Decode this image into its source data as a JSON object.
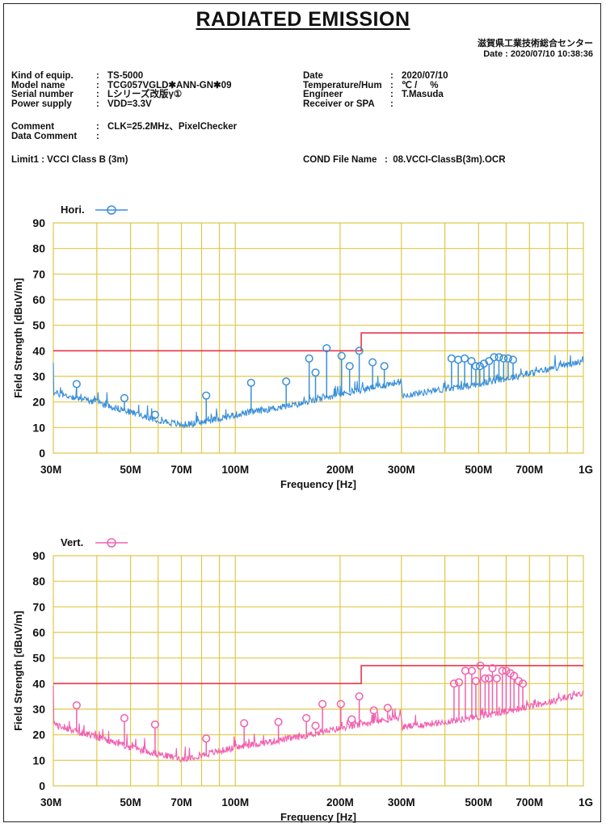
{
  "title": "RADIATED EMISSION",
  "org": "滋賀県工業技術総合センター",
  "date_line": "Date : 2020/07/10 10:38:36",
  "meta_left": [
    {
      "key": "Kind of equip.",
      "value": "TS-5000"
    },
    {
      "key": "Model name",
      "value": "TCG057VGLD✱ANN-GN✱09"
    },
    {
      "key": "Serial number",
      "value": "Lシリーズ改版γ①"
    },
    {
      "key": "Power supply",
      "value": "VDD=3.3V"
    }
  ],
  "meta_right": [
    {
      "key": "Date",
      "value": "2020/07/10"
    },
    {
      "key": "Temperature/Hum",
      "value": "℃ /     %"
    },
    {
      "key": "Engineer",
      "value": "T.Masuda"
    },
    {
      "key": "Receiver or SPA",
      "value": ""
    }
  ],
  "comment": {
    "key": "Comment",
    "value": "CLK=25.2MHz、PixelChecker"
  },
  "data_comment": {
    "key": "Data Comment",
    "value": ""
  },
  "limit": {
    "key": "Limit1",
    "value": "VCCI Class B (3m)"
  },
  "cond_file": {
    "key": "COND File Name",
    "value": "08.VCCI-ClassB(3m).OCR"
  },
  "chart_data": [
    {
      "type": "line",
      "series_name": "Hori.",
      "color": "#3a8fd8",
      "xlabel": "Frequency [Hz]",
      "ylabel": "Field Strength [dBuV/m]",
      "xscale": "log",
      "xlim_mhz": [
        30,
        1000
      ],
      "ylim": [
        0,
        90
      ],
      "yticks": [
        0,
        10,
        20,
        30,
        40,
        50,
        60,
        70,
        80,
        90
      ],
      "xtick_labels": [
        {
          "mhz": 30,
          "label": "30M"
        },
        {
          "mhz": 50,
          "label": "50M"
        },
        {
          "mhz": 70,
          "label": "70M"
        },
        {
          "mhz": 100,
          "label": "100M"
        },
        {
          "mhz": 200,
          "label": "200M"
        },
        {
          "mhz": 300,
          "label": "300M"
        },
        {
          "mhz": 500,
          "label": "500M"
        },
        {
          "mhz": 700,
          "label": "700M"
        },
        {
          "mhz": 1000,
          "label": "1G"
        }
      ],
      "limit": [
        {
          "from_mhz": 30,
          "to_mhz": 230,
          "dbuv": 40
        },
        {
          "from_mhz": 230,
          "to_mhz": 1000,
          "dbuv": 47
        }
      ],
      "noise_floor": [
        [
          30,
          23.5
        ],
        [
          40,
          20
        ],
        [
          50,
          16
        ],
        [
          60,
          13
        ],
        [
          70,
          11
        ],
        [
          80,
          12
        ],
        [
          100,
          15
        ],
        [
          150,
          19
        ],
        [
          200,
          23
        ],
        [
          300,
          28
        ],
        [
          302,
          22.5
        ],
        [
          400,
          25
        ],
        [
          500,
          27
        ],
        [
          700,
          31
        ],
        [
          1000,
          36
        ]
      ],
      "peaks": [
        [
          35,
          27
        ],
        [
          48,
          21.5
        ],
        [
          58.8,
          15
        ],
        [
          82.5,
          22.5
        ],
        [
          111,
          27.5
        ],
        [
          140,
          28
        ],
        [
          163,
          37
        ],
        [
          170,
          31.5
        ],
        [
          183,
          41
        ],
        [
          202,
          38
        ],
        [
          213,
          34
        ],
        [
          227,
          40
        ],
        [
          248,
          35.5
        ],
        [
          268,
          34
        ],
        [
          418,
          37
        ],
        [
          437,
          36.5
        ],
        [
          456,
          37
        ],
        [
          477,
          36
        ],
        [
          491,
          34
        ],
        [
          504,
          34
        ],
        [
          518,
          35
        ],
        [
          536,
          36
        ],
        [
          554,
          37.5
        ],
        [
          572,
          37.5
        ],
        [
          590,
          37
        ],
        [
          608,
          37
        ],
        [
          628,
          36.5
        ]
      ]
    },
    {
      "type": "line",
      "series_name": "Vert.",
      "color": "#f060b0",
      "xlabel": "Frequency [Hz]",
      "ylabel": "Field Strength [dBuV/m]",
      "xscale": "log",
      "xlim_mhz": [
        30,
        1000
      ],
      "ylim": [
        0,
        90
      ],
      "yticks": [
        0,
        10,
        20,
        30,
        40,
        50,
        60,
        70,
        80,
        90
      ],
      "xtick_labels": [
        {
          "mhz": 30,
          "label": "30M"
        },
        {
          "mhz": 50,
          "label": "50M"
        },
        {
          "mhz": 70,
          "label": "70M"
        },
        {
          "mhz": 100,
          "label": "100M"
        },
        {
          "mhz": 200,
          "label": "200M"
        },
        {
          "mhz": 300,
          "label": "300M"
        },
        {
          "mhz": 500,
          "label": "500M"
        },
        {
          "mhz": 700,
          "label": "700M"
        },
        {
          "mhz": 1000,
          "label": "1G"
        }
      ],
      "limit": [
        {
          "from_mhz": 30,
          "to_mhz": 230,
          "dbuv": 40
        },
        {
          "from_mhz": 230,
          "to_mhz": 1000,
          "dbuv": 47
        }
      ],
      "noise_floor": [
        [
          30,
          24
        ],
        [
          40,
          19
        ],
        [
          50,
          15
        ],
        [
          60,
          12.5
        ],
        [
          70,
          10.5
        ],
        [
          80,
          12
        ],
        [
          100,
          15
        ],
        [
          150,
          19
        ],
        [
          200,
          22.5
        ],
        [
          300,
          27
        ],
        [
          302,
          23
        ],
        [
          400,
          25
        ],
        [
          500,
          27
        ],
        [
          700,
          31
        ],
        [
          1000,
          36
        ]
      ],
      "peaks": [
        [
          35,
          31.5
        ],
        [
          48,
          26.5
        ],
        [
          58.8,
          24
        ],
        [
          82.5,
          18.5
        ],
        [
          106,
          24.5
        ],
        [
          133,
          25
        ],
        [
          160,
          26.5
        ],
        [
          170,
          23.5
        ],
        [
          178,
          32
        ],
        [
          201,
          32
        ],
        [
          216,
          26
        ],
        [
          227,
          35
        ],
        [
          250,
          29.5
        ],
        [
          274,
          30.5
        ],
        [
          425,
          40
        ],
        [
          439,
          40.5
        ],
        [
          458,
          45
        ],
        [
          478,
          45
        ],
        [
          491,
          41
        ],
        [
          506,
          47
        ],
        [
          522,
          42
        ],
        [
          535,
          42
        ],
        [
          548,
          46
        ],
        [
          564,
          42
        ],
        [
          585,
          45
        ],
        [
          600,
          45
        ],
        [
          617,
          44
        ],
        [
          632,
          43
        ],
        [
          652,
          41
        ],
        [
          670,
          40
        ]
      ]
    }
  ]
}
